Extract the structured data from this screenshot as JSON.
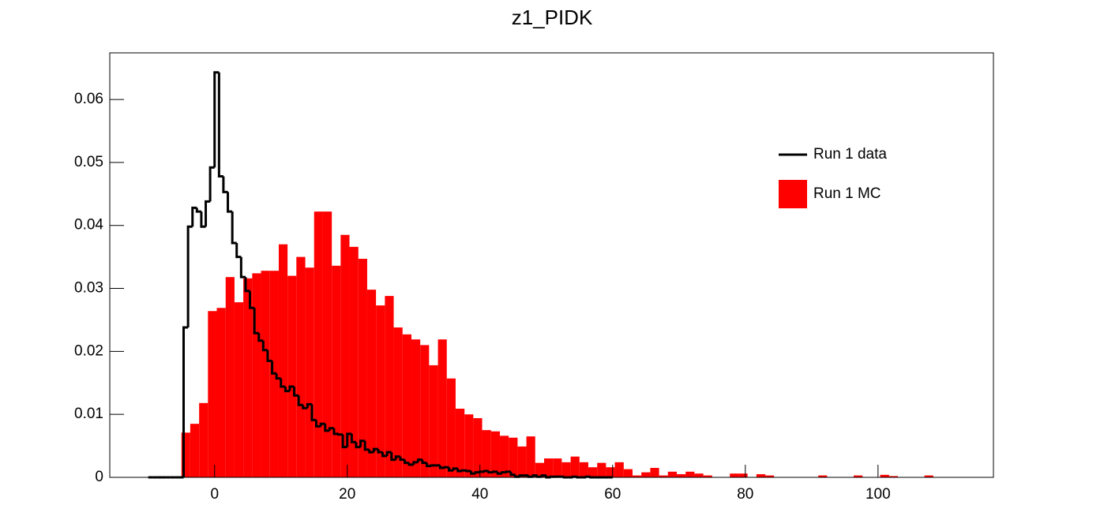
{
  "chart_data": {
    "type": "histogram",
    "title": "z1_PIDK",
    "xlim": [
      -15.8,
      117.4
    ],
    "ylim": [
      0,
      0.0674
    ],
    "xticks": [
      0,
      20,
      40,
      60,
      80,
      100
    ],
    "yticks": [
      0,
      0.01,
      0.02,
      0.03,
      0.04,
      0.05,
      0.06
    ],
    "legend": "upper right",
    "series": [
      {
        "name": "Run 1 data",
        "color": "#000000",
        "histtype": "step",
        "bins": [
          -10,
          -9.33,
          -8.67,
          -8,
          -7.33,
          -6.67,
          -6,
          -5.33,
          -4.67,
          -4,
          -3.33,
          -2.67,
          -2,
          -1.33,
          -0.67,
          0,
          0.67,
          1.33,
          2,
          2.67,
          3.33,
          4,
          4.67,
          5.33,
          6,
          6.67,
          7.33,
          8,
          8.67,
          9.33,
          10,
          10.67,
          11.33,
          12,
          12.67,
          13.33,
          14,
          14.67,
          15.33,
          16,
          16.67,
          17.33,
          18,
          18.67,
          19.33,
          20,
          20.67,
          21.33,
          22,
          22.67,
          23.33,
          24,
          24.67,
          25.33,
          26,
          26.67,
          27.33,
          28,
          28.67,
          29.33,
          30,
          30.67,
          31.33,
          32,
          32.67,
          33.33,
          34,
          34.67,
          35.33,
          36,
          36.67,
          37.33,
          38,
          38.67,
          39.33,
          40,
          40.67,
          41.33,
          42,
          42.67,
          43.33,
          44,
          44.67,
          45.33,
          46,
          46.67,
          47.33,
          48,
          48.67,
          49.33,
          50,
          50.67,
          51.33,
          52,
          52.67,
          53.33,
          54,
          54.67,
          55.33,
          56,
          56.67,
          57.33,
          58,
          58.67,
          59.33,
          60
        ],
        "values": [
          0,
          0,
          0,
          0,
          0,
          0,
          0,
          0,
          0.0238,
          0.0398,
          0.0428,
          0.0422,
          0.0398,
          0.0438,
          0.0492,
          0.0643,
          0.0478,
          0.0453,
          0.0422,
          0.0372,
          0.035,
          0.0318,
          0.0296,
          0.0269,
          0.0229,
          0.0217,
          0.0202,
          0.0185,
          0.0165,
          0.0157,
          0.0144,
          0.0137,
          0.0144,
          0.013,
          0.0115,
          0.011,
          0.0116,
          0.0091,
          0.0081,
          0.0085,
          0.0074,
          0.0078,
          0.0069,
          0.0068,
          0.0048,
          0.0069,
          0.0056,
          0.0048,
          0.0058,
          0.0044,
          0.004,
          0.0045,
          0.004,
          0.0034,
          0.004,
          0.0028,
          0.0033,
          0.0028,
          0.0023,
          0.002,
          0.0024,
          0.0028,
          0.0023,
          0.0018,
          0.0019,
          0.0019,
          0.0015,
          0.0016,
          0.0011,
          0.0014,
          0.001,
          0.0011,
          0.001,
          0.0006,
          0.0008,
          0.0009,
          0.001,
          0.0008,
          0.0009,
          0.0006,
          0.0008,
          0.0009,
          0.0004,
          0.0001,
          0.0003,
          0.0003,
          0.0001,
          0.0003,
          0.0001,
          0.0003,
          0,
          0.0001,
          0.0001,
          0.0001,
          0,
          0,
          0.0001,
          0,
          0,
          0.0001,
          0,
          0,
          0,
          0,
          0
        ]
      },
      {
        "name": "Run 1 MC",
        "color": "#ff0000",
        "histtype": "filled",
        "bins": [
          -5,
          -3.67,
          -2.33,
          -1,
          0.33,
          1.67,
          3,
          4.33,
          5.67,
          7,
          8.33,
          9.67,
          11,
          12.33,
          13.67,
          15,
          16.33,
          17.67,
          19,
          20.33,
          21.67,
          23,
          24.33,
          25.67,
          27,
          28.33,
          29.67,
          31,
          32.33,
          33.67,
          35,
          36.33,
          37.67,
          39,
          40.33,
          41.67,
          43,
          44.33,
          45.67,
          47,
          48.33,
          49.67,
          51,
          52.33,
          53.67,
          55,
          56.33,
          57.67,
          59,
          60.33,
          61.67,
          63,
          64.33,
          65.67,
          67,
          68.33,
          69.67,
          71,
          72.33,
          73.67,
          75,
          76.33,
          77.67,
          79,
          80.33,
          81.67,
          83,
          84.33,
          85.67,
          87,
          88.33,
          89.67,
          91,
          92.33,
          93.67,
          95,
          96.33,
          97.67,
          99,
          100.33,
          101.67,
          103,
          104.33,
          105.67,
          107,
          108.33,
          109.67,
          111,
          112.33,
          113.67,
          115
        ],
        "values": [
          0.0071,
          0.0085,
          0.0118,
          0.0264,
          0.0269,
          0.0318,
          0.0278,
          0.0316,
          0.0324,
          0.0328,
          0.0328,
          0.037,
          0.032,
          0.035,
          0.0333,
          0.0422,
          0.0422,
          0.0336,
          0.0385,
          0.0366,
          0.0347,
          0.0298,
          0.0273,
          0.0288,
          0.0238,
          0.0227,
          0.0219,
          0.021,
          0.0178,
          0.0219,
          0.0157,
          0.0109,
          0.01,
          0.0094,
          0.0075,
          0.0073,
          0.0066,
          0.0063,
          0.0049,
          0.0065,
          0.0023,
          0.003,
          0.003,
          0.0024,
          0.0033,
          0.0024,
          0.0016,
          0.0023,
          0.0016,
          0.0024,
          0.0013,
          0.0003,
          0.0008,
          0.0015,
          0.0003,
          0.0009,
          0.0005,
          0.0009,
          0.0006,
          0.0003,
          0,
          0,
          0.0006,
          0.0006,
          0,
          0.0005,
          0.0003,
          0,
          0,
          0,
          0,
          0,
          0.0003,
          0,
          0,
          0,
          0.0003,
          0,
          0,
          0.0004,
          0.0002,
          0,
          0,
          0,
          0.0003,
          0,
          0,
          0,
          0,
          0
        ]
      }
    ]
  }
}
